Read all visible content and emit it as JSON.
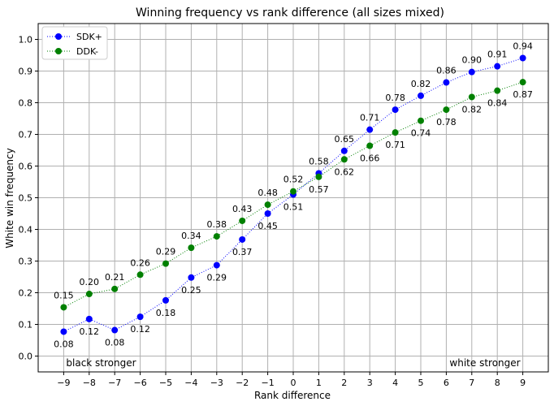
{
  "chart_data": {
    "type": "line",
    "title": "Winning frequency vs rank difference (all sizes mixed)",
    "xlabel": "Rank difference",
    "ylabel": "White win frequency",
    "x": [
      -9,
      -8,
      -7,
      -6,
      -5,
      -4,
      -3,
      -2,
      -1,
      0,
      1,
      2,
      3,
      4,
      5,
      6,
      7,
      8,
      9
    ],
    "xlim": [
      -10,
      10
    ],
    "ylim": [
      -0.05,
      1.05
    ],
    "xticks": [
      -9,
      -8,
      -7,
      -6,
      -5,
      -4,
      -3,
      -2,
      -1,
      0,
      1,
      2,
      3,
      4,
      5,
      6,
      7,
      8,
      9
    ],
    "xtick_labels": [
      "−9",
      "−8",
      "−7",
      "−6",
      "−5",
      "−4",
      "−3",
      "−2",
      "−1",
      "0",
      "1",
      "2",
      "3",
      "4",
      "5",
      "6",
      "7",
      "8",
      "9"
    ],
    "yticks": [
      0.0,
      0.1,
      0.2,
      0.3,
      0.4,
      0.5,
      0.6,
      0.7,
      0.8,
      0.9,
      1.0
    ],
    "ytick_labels": [
      "0.0",
      "0.1",
      "0.2",
      "0.3",
      "0.4",
      "0.5",
      "0.6",
      "0.7",
      "0.8",
      "0.9",
      "1.0"
    ],
    "grid": true,
    "legend_position": "top-left",
    "series": [
      {
        "name": "SDK+",
        "color": "#0000ff",
        "label_position": [
          "below",
          "below",
          "below",
          "below",
          "below",
          "below",
          "below",
          "below",
          "below",
          "below",
          "above",
          "above",
          "above",
          "above",
          "above",
          "above",
          "above",
          "above",
          "above"
        ],
        "values": [
          0.077,
          0.117,
          0.082,
          0.124,
          0.176,
          0.248,
          0.287,
          0.368,
          0.45,
          0.51,
          0.577,
          0.648,
          0.715,
          0.778,
          0.822,
          0.864,
          0.897,
          0.915,
          0.941
        ],
        "labels": [
          "0.08",
          "0.12",
          "0.08",
          "0.12",
          "0.18",
          "0.25",
          "0.29",
          "0.37",
          "0.45",
          "0.51",
          "0.58",
          "0.65",
          "0.71",
          "0.78",
          "0.82",
          "0.86",
          "0.90",
          "0.91",
          "0.94"
        ]
      },
      {
        "name": "DDK-",
        "color": "#008000",
        "label_position": [
          "above",
          "above",
          "above",
          "above",
          "above",
          "above",
          "above",
          "above",
          "above",
          "above",
          "below",
          "below",
          "below",
          "below",
          "below",
          "below",
          "below",
          "below",
          "below"
        ],
        "values": [
          0.154,
          0.196,
          0.212,
          0.257,
          0.292,
          0.342,
          0.378,
          0.427,
          0.478,
          0.52,
          0.566,
          0.621,
          0.664,
          0.706,
          0.743,
          0.778,
          0.818,
          0.838,
          0.865
        ],
        "labels": [
          "0.15",
          "0.20",
          "0.21",
          "0.26",
          "0.29",
          "0.34",
          "0.38",
          "0.43",
          "0.48",
          "0.52",
          "0.57",
          "0.62",
          "0.66",
          "0.71",
          "0.74",
          "0.78",
          "0.82",
          "0.84",
          "0.87"
        ]
      }
    ],
    "annotations": [
      {
        "text": "black stronger",
        "position": "bottom-left"
      },
      {
        "text": "white stronger",
        "position": "bottom-right"
      }
    ]
  }
}
